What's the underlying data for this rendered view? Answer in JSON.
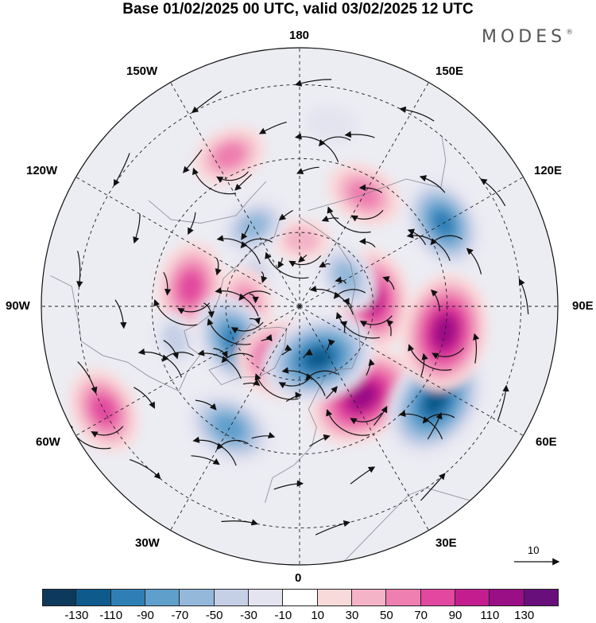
{
  "title": "Base 01/02/2025 00 UTC, valid 03/02/2025 12 UTC",
  "brand": "MODES",
  "brand_mark": "®",
  "lon_labels": {
    "l180": "180",
    "l150w": "150W",
    "l150e": "150E",
    "l120w": "120W",
    "l120e": "120E",
    "l90w": "90W",
    "l90e": "90E",
    "l60w": "60W",
    "l60e": "60E",
    "l30w": "30W",
    "l30e": "30E",
    "l0": "0"
  },
  "reference_vector": "10",
  "colorbar": {
    "colors": [
      "#0d3a5c",
      "#0f5a8c",
      "#2f7fb6",
      "#5f9fcc",
      "#93b8da",
      "#c5cfe6",
      "#e4e4f0",
      "#ffffff",
      "#f9dada",
      "#f4b3c7",
      "#ee7fb0",
      "#e2489f",
      "#c41d8f",
      "#9a0e86",
      "#680f7c"
    ],
    "ticks": [
      "-130",
      "-110",
      "-90",
      "-70",
      "-50",
      "-30",
      "-10",
      "10",
      "30",
      "50",
      "70",
      "90",
      "110",
      "130"
    ]
  },
  "anomaly_cells": [
    {
      "lon": 35,
      "lat": 60,
      "value": 120
    },
    {
      "lon": 55,
      "lat": 45,
      "value": -125
    },
    {
      "lon": 80,
      "lat": 50,
      "value": 125
    },
    {
      "lon": 95,
      "lat": 70,
      "value": 100
    },
    {
      "lon": 120,
      "lat": 45,
      "value": -90
    },
    {
      "lon": 150,
      "lat": 55,
      "value": 65
    },
    {
      "lon": 122,
      "lat": 75,
      "value": -55
    },
    {
      "lon": 178,
      "lat": 72,
      "value": 35
    },
    {
      "lon": -155,
      "lat": 45,
      "value": 60
    },
    {
      "lon": -150,
      "lat": 65,
      "value": -55
    },
    {
      "lon": -120,
      "lat": 75,
      "value": -35
    },
    {
      "lon": -100,
      "lat": 60,
      "value": 85
    },
    {
      "lon": -90,
      "lat": 75,
      "value": 65
    },
    {
      "lon": -62,
      "lat": 70,
      "value": -95
    },
    {
      "lon": -62,
      "lat": 30,
      "value": 80
    },
    {
      "lon": -30,
      "lat": 52,
      "value": -85
    },
    {
      "lon": -8,
      "lat": 75,
      "value": 115
    },
    {
      "lon": 20,
      "lat": 75,
      "value": -120
    },
    {
      "lon": -75,
      "lat": 55,
      "value": -30
    },
    {
      "lon": 170,
      "lat": 40,
      "value": -25
    }
  ]
}
